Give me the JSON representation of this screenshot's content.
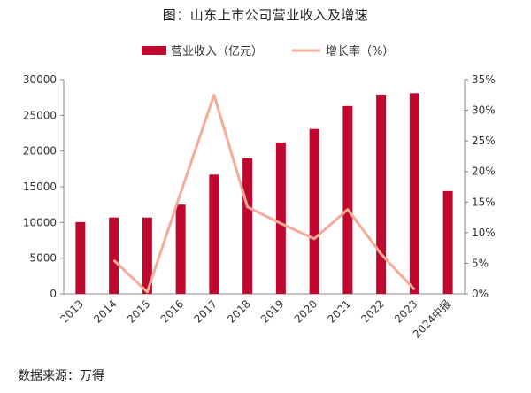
{
  "title": "图：山东上市公司营业收入及增速",
  "source": "数据来源：万得",
  "chart_data": {
    "type": "bar",
    "categories": [
      "2013",
      "2014",
      "2015",
      "2016",
      "2017",
      "2018",
      "2019",
      "2020",
      "2021",
      "2022",
      "2023",
      "2024中报"
    ],
    "series": [
      {
        "name": "营业收入（亿元）",
        "kind": "bar",
        "axis": "left",
        "color": "#c0082f",
        "values": [
          10050,
          10700,
          10700,
          12500,
          16700,
          19000,
          21200,
          23100,
          26300,
          27900,
          28100,
          14400
        ]
      },
      {
        "name": "增长率（%）",
        "kind": "line",
        "axis": "right",
        "color": "#f4ab98",
        "values": [
          null,
          5.5,
          0.3,
          16.5,
          32.5,
          14.2,
          11.5,
          9.0,
          13.8,
          6.5,
          0.7,
          null
        ]
      }
    ],
    "left_axis": {
      "min": 0,
      "max": 30000,
      "ticks": [
        0,
        5000,
        10000,
        15000,
        20000,
        25000,
        30000
      ]
    },
    "right_axis": {
      "min": 0,
      "max": 35,
      "ticks": [
        "0%",
        "5%",
        "10%",
        "15%",
        "20%",
        "25%",
        "30%",
        "35%"
      ]
    },
    "legend_position": "top-center"
  }
}
